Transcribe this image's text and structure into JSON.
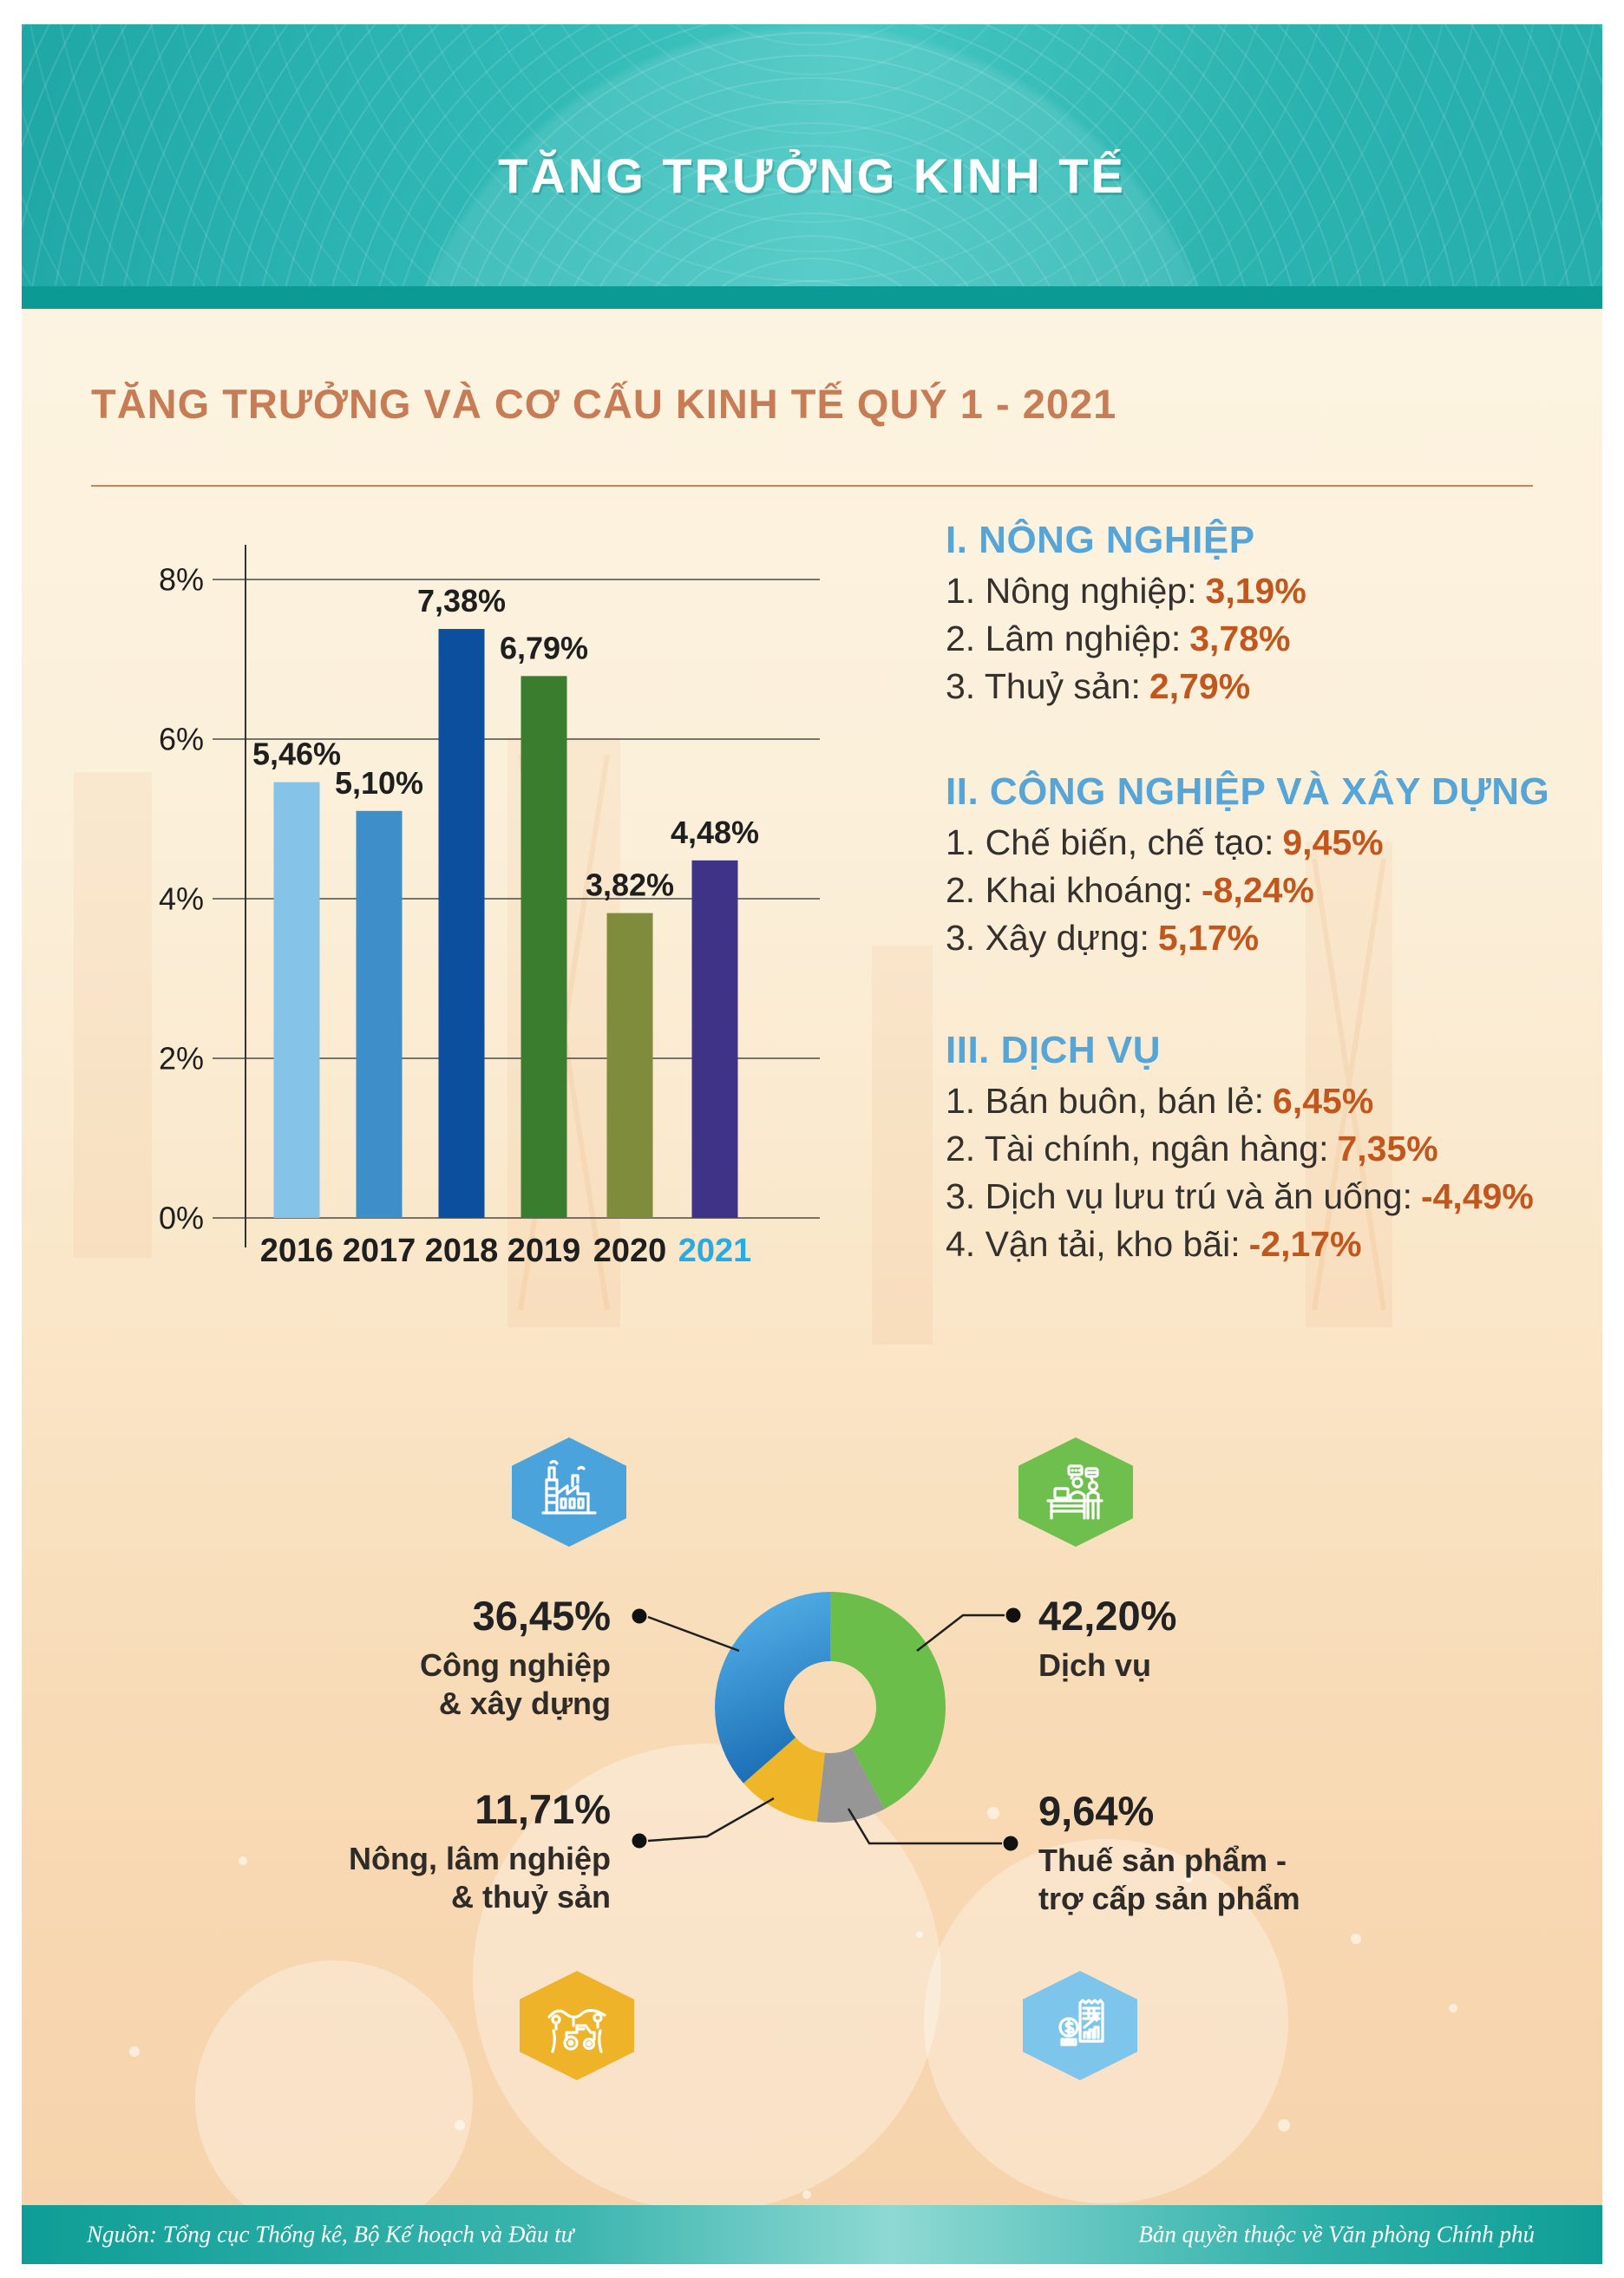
{
  "header": {
    "title": "TĂNG TRƯỞNG KINH TẾ"
  },
  "section_title": "TĂNG TRƯỞNG VÀ CƠ CẤU KINH TẾ QUÝ 1 - 2021",
  "sector_lists": [
    {
      "heading": "I. NÔNG NGHIỆP",
      "items": [
        {
          "label": "1. Nông nghiệp:",
          "value": "3,19%"
        },
        {
          "label": "2. Lâm nghiệp:",
          "value": "3,78%"
        },
        {
          "label": "3. Thuỷ sản:",
          "value": "2,79%"
        }
      ]
    },
    {
      "heading": "II. CÔNG NGHIỆP VÀ XÂY DỰNG",
      "items": [
        {
          "label": "1. Chế biến, chế tạo:",
          "value": "9,45%"
        },
        {
          "label": "2. Khai khoáng:",
          "value": "-8,24%"
        },
        {
          "label": "3. Xây dựng:",
          "value": "5,17%"
        }
      ]
    },
    {
      "heading": "III. DỊCH VỤ",
      "items": [
        {
          "label": "1. Bán buôn, bán lẻ:",
          "value": "6,45%"
        },
        {
          "label": "2. Tài chính, ngân hàng:",
          "value": "7,35%"
        },
        {
          "label": "3. Dịch vụ lưu trú và ăn uống:",
          "value": "-4,49%"
        },
        {
          "label": "4. Vận tải, kho bãi:",
          "value": "-2,17%"
        }
      ]
    }
  ],
  "chart_data": [
    {
      "type": "bar",
      "title": "GDP growth by year (Q1)",
      "categories": [
        "2016",
        "2017",
        "2018",
        "2019",
        "2020",
        "2021"
      ],
      "values": [
        5.46,
        5.1,
        7.38,
        6.79,
        3.82,
        4.48
      ],
      "value_labels": [
        "5,46%",
        "5,10%",
        "7,38%",
        "6,79%",
        "3,82%",
        "4,48%"
      ],
      "xlabel": "",
      "ylabel": "",
      "ylim": [
        0,
        8.6
      ],
      "grid": true,
      "y_ticks": [
        {
          "label": "8%",
          "value": 8
        },
        {
          "label": "6%",
          "value": 6
        },
        {
          "label": "4%",
          "value": 4
        },
        {
          "label": "2%",
          "value": 2
        },
        {
          "label": "0%",
          "value": 0
        }
      ],
      "bar_colors": [
        "#85C3E8",
        "#3E8FC9",
        "#0B4F9E",
        "#3A7D2E",
        "#7F8C3C",
        "#3F3387"
      ],
      "x_label_colors": [
        "#1F1F1F",
        "#1F1F1F",
        "#1F1F1F",
        "#1F1F1F",
        "#1F1F1F",
        "#29ABE2"
      ]
    },
    {
      "type": "pie",
      "subtype": "donut",
      "title": "Cơ cấu kinh tế Quý 1 - 2021",
      "start_angle_deg": 0,
      "inner_radius_ratio": 0.4,
      "legend_position": "callout-labels",
      "slices": [
        {
          "label": "Dịch vụ",
          "value": 42.2,
          "pct_label": "42,20%",
          "color": "#6CBE4B"
        },
        {
          "label": "Thuế sản phẩm - trợ cấp sản phẩm",
          "value": 9.64,
          "pct_label": "9,64%",
          "color": "#969696"
        },
        {
          "label": "Nông, lâm nghiệp & thuỷ sản",
          "value": 11.71,
          "pct_label": "11,71%",
          "color": "#F0B62A"
        },
        {
          "label": "Công nghiệp & xây dựng",
          "value": 36.45,
          "pct_label": "36,45%",
          "color": "#2F85C6",
          "gradient": [
            "#59B7EC",
            "#1C6FB6"
          ]
        }
      ]
    }
  ],
  "donut_labels": {
    "industry": {
      "pct": "36,45%",
      "line1": "Công nghiệp",
      "line2": "& xây dựng"
    },
    "services": {
      "pct": "42,20%",
      "line1": "Dịch vụ",
      "line2": ""
    },
    "agriculture": {
      "pct": "11,71%",
      "line1": "Nông, lâm nghiệp",
      "line2": "& thuỷ sản"
    },
    "tax": {
      "pct": "9,64%",
      "line1": "Thuế sản phẩm -",
      "line2": "trợ cấp sản phẩm"
    }
  },
  "hexagons": [
    {
      "icon": "factory-icon",
      "color": "#4BA3DC"
    },
    {
      "icon": "service-counter-icon",
      "color": "#6EBF4E"
    },
    {
      "icon": "agriculture-tractor-icon",
      "color": "#EFB32A"
    },
    {
      "icon": "tax-finance-icon",
      "color": "#7EC5EB"
    }
  ],
  "footer": {
    "source": "Nguồn: Tổng cục Thống kê, Bộ Kế hoạch và Đầu tư",
    "copyright": "Bản quyền thuộc về Văn phòng Chính phủ"
  },
  "colors": {
    "header_teal": "#2BB3B0",
    "header_strip": "#0B9B94",
    "accent_terracotta": "#C87C55",
    "heading_blue": "#56A5D8",
    "value_orange": "#C2571D",
    "highlight_year": "#29ABE2",
    "paper_cream": "#FCF4E1"
  }
}
